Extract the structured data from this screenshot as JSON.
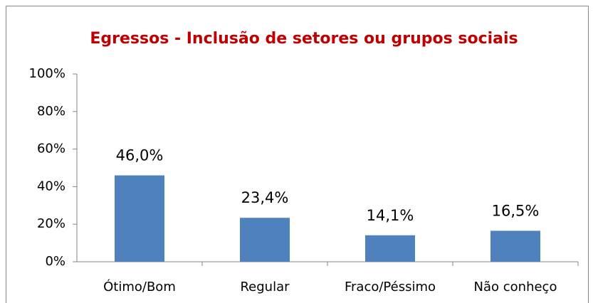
{
  "chart_data": {
    "type": "bar",
    "title": "Egressos - Inclusão de setores ou grupos sociais",
    "categories": [
      "Ótimo/Bom",
      "Regular",
      "Fraco/Péssimo",
      "Não conheço"
    ],
    "values": [
      46.0,
      23.4,
      14.1,
      16.5
    ],
    "value_labels": [
      "46,0%",
      "23,4%",
      "14,1%",
      "16,5%"
    ],
    "color": "#4f81bd",
    "ylim": [
      0,
      100
    ],
    "yticks": [
      {
        "value": 0,
        "label": "0%"
      },
      {
        "value": 20,
        "label": "20%"
      },
      {
        "value": 40,
        "label": "40%"
      },
      {
        "value": 60,
        "label": "60%"
      },
      {
        "value": 80,
        "label": "80%"
      },
      {
        "value": 100,
        "label": "100%"
      }
    ],
    "grid": false
  }
}
